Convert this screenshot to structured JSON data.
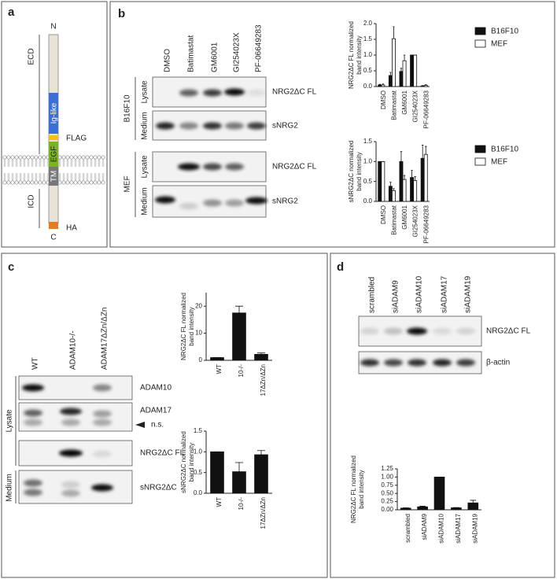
{
  "panels": {
    "a": {
      "label": "a",
      "n_terminus": "N",
      "c_terminus": "C",
      "ecd": "ECD",
      "icd": "ICD",
      "domains": {
        "ig": "Ig-like",
        "flag": "FLAG",
        "egf": "EGF",
        "tm": "TM",
        "ha": "HA"
      }
    },
    "b": {
      "label": "b",
      "lanes": [
        "DMSO",
        "Batimastat",
        "GM6001",
        "GI254023X",
        "PF-06649283"
      ],
      "groups": [
        "B16F10",
        "MEF"
      ],
      "rows": [
        "Lysate",
        "Medium"
      ],
      "bands": [
        "NRG2ΔC FL",
        "sNRG2"
      ],
      "charts": [
        {
          "type": "bar",
          "ylabel": [
            "NRG2ΔC FL normalized",
            "band intensity"
          ],
          "categories": [
            "DMSO",
            "Batimastat",
            "GM6001",
            "GI254023X",
            "PF-06649283"
          ],
          "series": [
            {
              "name": "B16F10",
              "color": "#111111",
              "values": [
                0.05,
                0.35,
                0.48,
                1.0,
                0.02
              ],
              "errors": [
                0.02,
                0.1,
                0.1,
                0,
                0.01
              ]
            },
            {
              "name": "MEF",
              "color": "#ffffff",
              "values": [
                0.05,
                1.52,
                0.82,
                1.0,
                0.04
              ],
              "errors": [
                0.03,
                0.38,
                0.18,
                0,
                0.02
              ]
            }
          ],
          "ylim": [
            0,
            2
          ],
          "yticks": [
            {
              "value": 0,
              "label": "0.0"
            },
            {
              "value": 0.5,
              "label": "0.5"
            },
            {
              "value": 1,
              "label": "1.0"
            },
            {
              "value": 1.5,
              "label": "1.5"
            },
            {
              "value": 2,
              "label": "2.0"
            }
          ],
          "legend": "right"
        },
        {
          "type": "bar",
          "ylabel": [
            "sNRG2ΔC normalized",
            "band intensity"
          ],
          "categories": [
            "DMSO",
            "Batimastat",
            "GM6001",
            "GI254023X",
            "PF-06649283"
          ],
          "series": [
            {
              "name": "B16F10",
              "color": "#111111",
              "values": [
                1.0,
                0.38,
                1.0,
                0.6,
                1.08
              ],
              "errors": [
                0,
                0.1,
                0.25,
                0.18,
                0.33
              ]
            },
            {
              "name": "MEF",
              "color": "#ffffff",
              "values": [
                1.0,
                0.27,
                0.55,
                0.52,
                1.18
              ],
              "errors": [
                0,
                0.05,
                0.1,
                0.1,
                0.2
              ]
            }
          ],
          "ylim": [
            0,
            1.5
          ],
          "yticks": [
            {
              "value": 0,
              "label": "0.0"
            },
            {
              "value": 0.5,
              "label": "0.5"
            },
            {
              "value": 1,
              "label": "1.0"
            },
            {
              "value": 1.5,
              "label": "1.5"
            }
          ],
          "legend": "right"
        }
      ]
    },
    "c": {
      "label": "c",
      "lanes": [
        "WT",
        "ADAM10-/-",
        "ADAM17ΔZn/ΔZn"
      ],
      "rows": [
        "Lysate",
        "Medium"
      ],
      "bands": [
        "ADAM10",
        "ADAM17",
        "n.s.",
        "NRG2ΔC FL",
        "sNRG2ΔC"
      ],
      "charts": [
        {
          "type": "bar",
          "ylabel": [
            "NRG2ΔC FL normalized",
            "band intensity"
          ],
          "categories": [
            "WT",
            "10-/-",
            "17ΔZn/ΔZn"
          ],
          "series": [
            {
              "name": null,
              "color": "#111111",
              "values": [
                1,
                17.5,
                2.2
              ],
              "errors": [
                0,
                2.5,
                0.5
              ]
            }
          ],
          "ylim": [
            0,
            25
          ],
          "yticks": [
            0,
            10,
            20
          ]
        },
        {
          "type": "bar",
          "ylabel": [
            "sNRG2ΔC normalized",
            "band intensity"
          ],
          "categories": [
            "WT",
            "10-/-",
            "17ΔZn/ΔZn"
          ],
          "series": [
            {
              "name": null,
              "color": "#111111",
              "values": [
                1.0,
                0.52,
                0.93
              ],
              "errors": [
                0,
                0.22,
                0.1
              ]
            }
          ],
          "ylim": [
            0,
            1.5
          ],
          "yticks": [
            {
              "value": 0,
              "label": "0.0"
            },
            {
              "value": 0.5,
              "label": "0.5"
            },
            {
              "value": 1,
              "label": "1.0"
            },
            {
              "value": 1.5,
              "label": "1.5"
            }
          ]
        }
      ]
    },
    "d": {
      "label": "d",
      "lanes": [
        "scrambled",
        "siADAM9",
        "siADAM10",
        "siADAM17",
        "siADAM19"
      ],
      "bands": [
        "NRG2ΔC FL",
        "β-actin"
      ],
      "charts": [
        {
          "type": "bar",
          "ylabel": [
            "NRG2ΔC FL normalized",
            "band intensity"
          ],
          "categories": [
            "scrambled",
            "siADAM9",
            "siADAM10",
            "siADAM17",
            "siADAM19"
          ],
          "series": [
            {
              "name": null,
              "color": "#111111",
              "values": [
                0.05,
                0.09,
                1.0,
                0.06,
                0.21
              ],
              "errors": [
                0.01,
                0.02,
                0,
                0.01,
                0.08
              ]
            }
          ],
          "ylim": [
            0,
            1.25
          ],
          "yticks": [
            {
              "value": 0,
              "label": "0.00"
            },
            {
              "value": 0.25,
              "label": "0.25"
            },
            {
              "value": 0.5,
              "label": "0.50"
            },
            {
              "value": 0.75,
              "label": "0.75"
            },
            {
              "value": 1,
              "label": "1.00"
            },
            {
              "value": 1.25,
              "label": "1.25"
            }
          ]
        }
      ]
    }
  }
}
